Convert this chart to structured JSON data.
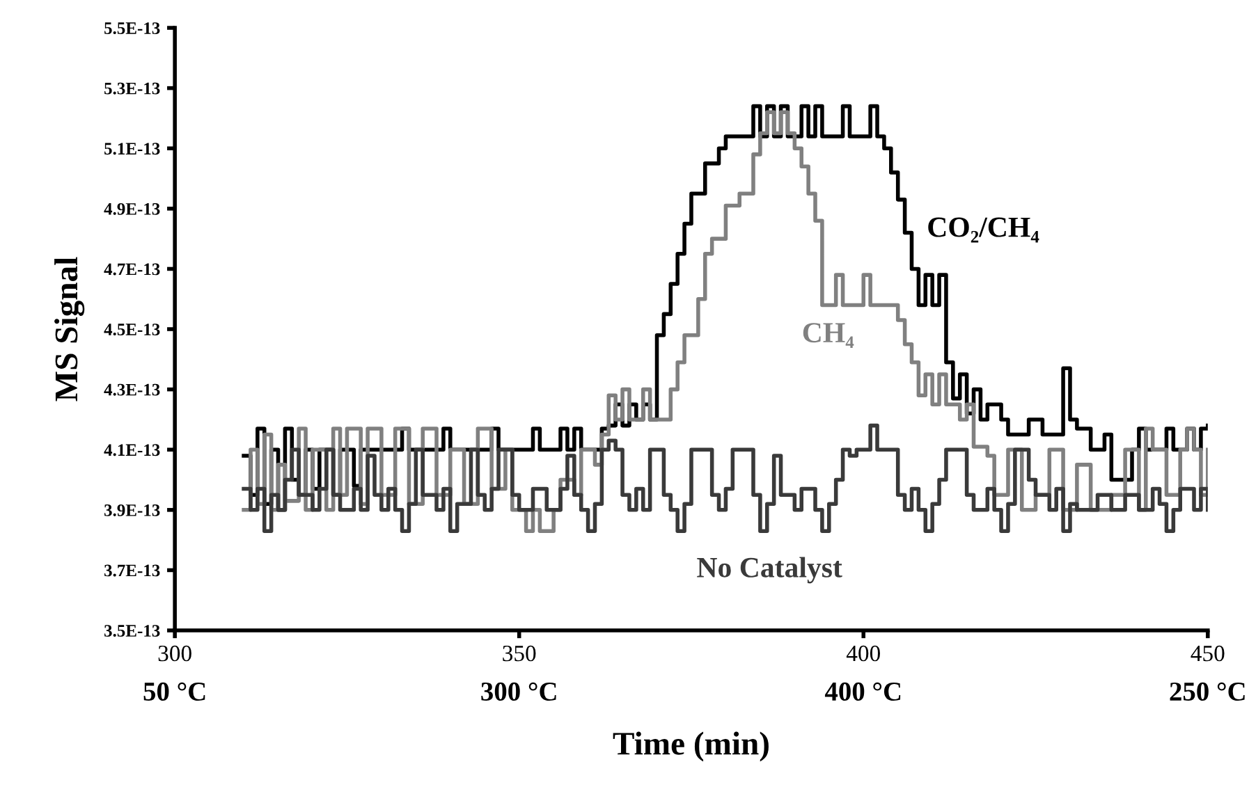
{
  "chart_data": {
    "type": "step",
    "xlabel": "Time (min)",
    "ylabel": "MS Signal",
    "xlim": [
      300,
      450
    ],
    "xticks": [
      300,
      350,
      400,
      450
    ],
    "annotations": [
      "50 °C",
      "300 °C",
      "400 °C",
      "250 °C"
    ],
    "ylim": [
      3.5e-13,
      5.5e-13
    ],
    "yticks": [
      {
        "value": 3.5e-13,
        "label": "3.5E-13"
      },
      {
        "value": 3.7e-13,
        "label": "3.7E-13"
      },
      {
        "value": 3.9e-13,
        "label": "3.9E-13"
      },
      {
        "value": 4.1e-13,
        "label": "4.1E-13"
      },
      {
        "value": 4.3e-13,
        "label": "4.3E-13"
      },
      {
        "value": 4.5e-13,
        "label": "4.5E-13"
      },
      {
        "value": 4.7e-13,
        "label": "4.7E-13"
      },
      {
        "value": 4.9e-13,
        "label": "4.9E-13"
      },
      {
        "value": 5.1e-13,
        "label": "5.1E-13"
      },
      {
        "value": 5.3e-13,
        "label": "5.3E-13"
      },
      {
        "value": 5.5e-13,
        "label": "5.5E-13"
      }
    ],
    "grid": false,
    "legend": false,
    "marker": "none",
    "line_style": "solid",
    "series": [
      {
        "name": "CO₂/CH₄",
        "color": "#000000",
        "x": [
          310,
          311,
          312,
          313,
          314,
          315,
          316,
          317,
          318,
          319,
          320,
          321,
          323,
          324,
          326,
          327,
          333,
          334,
          339,
          340,
          346,
          347,
          352,
          353,
          356,
          357,
          358,
          359,
          362,
          363,
          364,
          365,
          366,
          367,
          368,
          369,
          370,
          371,
          372,
          373,
          374,
          375,
          377,
          379,
          380,
          384,
          385,
          386,
          387,
          388,
          389,
          391,
          392,
          393,
          394,
          397,
          398,
          401,
          402,
          403,
          404,
          405,
          406,
          407,
          408,
          409,
          410,
          411,
          412,
          413,
          414,
          415,
          416,
          417,
          418,
          420,
          421,
          424,
          426,
          428,
          429,
          430,
          431,
          433,
          435,
          436,
          439,
          440,
          441,
          444,
          445,
          447,
          448,
          449,
          450
        ],
        "values": [
          4.08e-13,
          3.95e-13,
          4.17e-13,
          3.92e-13,
          4.1e-13,
          3.9e-13,
          4.17e-13,
          4e-13,
          3.95e-13,
          4.1e-13,
          3.97e-13,
          4.1e-13,
          3.95e-13,
          4.1e-13,
          3.98e-13,
          4.1e-13,
          4.17e-13,
          4.1e-13,
          4.17e-13,
          4.1e-13,
          4.17e-13,
          4.1e-13,
          4.17e-13,
          4.1e-13,
          4.17e-13,
          4.1e-13,
          4.17e-13,
          4.1e-13,
          4.17e-13,
          4.18e-13,
          4.25e-13,
          4.18e-13,
          4.25e-13,
          4.2e-13,
          4.25e-13,
          4.2e-13,
          4.48e-13,
          4.55e-13,
          4.65e-13,
          4.75e-13,
          4.85e-13,
          4.95e-13,
          5.05e-13,
          5.1e-13,
          5.14e-13,
          5.24e-13,
          5.14e-13,
          5.24e-13,
          5.14e-13,
          5.24e-13,
          5.14e-13,
          5.24e-13,
          5.14e-13,
          5.24e-13,
          5.14e-13,
          5.24e-13,
          5.14e-13,
          5.24e-13,
          5.14e-13,
          5.1e-13,
          5.02e-13,
          4.93e-13,
          4.82e-13,
          4.7e-13,
          4.58e-13,
          4.68e-13,
          4.58e-13,
          4.68e-13,
          4.39e-13,
          4.27e-13,
          4.35e-13,
          4.22e-13,
          4.3e-13,
          4.2e-13,
          4.25e-13,
          4.2e-13,
          4.15e-13,
          4.2e-13,
          4.15e-13,
          4.15e-13,
          4.37e-13,
          4.2e-13,
          4.17e-13,
          4.1e-13,
          4.15e-13,
          4e-13,
          4.1e-13,
          4.17e-13,
          4.1e-13,
          4.17e-13,
          4.1e-13,
          4.17e-13,
          4.1e-13,
          4.17e-13,
          4.18e-13
        ]
      },
      {
        "name": "CH₄",
        "color": "#808080",
        "x": [
          310,
          311,
          312,
          313,
          314,
          315,
          316,
          318,
          319,
          320,
          322,
          323,
          324,
          325,
          327,
          328,
          330,
          332,
          334,
          336,
          338,
          340,
          342,
          344,
          346,
          348,
          349,
          351,
          352,
          353,
          355,
          356,
          358,
          359,
          361,
          362,
          363,
          364,
          365,
          366,
          368,
          369,
          371,
          372,
          373,
          374,
          376,
          377,
          378,
          380,
          382,
          384,
          385,
          386,
          387,
          388,
          389,
          390,
          391,
          392,
          393,
          394,
          396,
          397,
          400,
          401,
          404,
          405,
          406,
          407,
          408,
          409,
          410,
          411,
          412,
          414,
          415,
          416,
          418,
          419,
          421,
          423,
          425,
          427,
          429,
          431,
          433,
          436,
          438,
          440,
          441,
          442,
          444,
          446,
          447,
          448,
          449,
          450
        ],
        "values": [
          3.9e-13,
          4.1e-13,
          3.92e-13,
          4.15e-13,
          3.9e-13,
          4.05e-13,
          3.93e-13,
          4.17e-13,
          3.9e-13,
          4.1e-13,
          3.9e-13,
          4.17e-13,
          3.95e-13,
          4.17e-13,
          3.92e-13,
          4.17e-13,
          3.95e-13,
          4.17e-13,
          3.92e-13,
          4.17e-13,
          3.95e-13,
          4.1e-13,
          3.92e-13,
          4.17e-13,
          3.97e-13,
          4.1e-13,
          3.9e-13,
          3.83e-13,
          3.9e-13,
          3.83e-13,
          3.9e-13,
          4e-13,
          3.95e-13,
          4.1e-13,
          4.05e-13,
          4.15e-13,
          4.28e-13,
          4.2e-13,
          4.3e-13,
          4.2e-13,
          4.3e-13,
          4.2e-13,
          4.2e-13,
          4.3e-13,
          4.39e-13,
          4.48e-13,
          4.6e-13,
          4.75e-13,
          4.8e-13,
          4.91e-13,
          4.95e-13,
          5.08e-13,
          5.15e-13,
          5.22e-13,
          5.15e-13,
          5.22e-13,
          5.15e-13,
          5.1e-13,
          5.04e-13,
          4.95e-13,
          4.86e-13,
          4.58e-13,
          4.68e-13,
          4.58e-13,
          4.68e-13,
          4.58e-13,
          4.58e-13,
          4.53e-13,
          4.45e-13,
          4.39e-13,
          4.28e-13,
          4.35e-13,
          4.25e-13,
          4.35e-13,
          4.25e-13,
          4.2e-13,
          4.25e-13,
          4.11e-13,
          4.08e-13,
          3.95e-13,
          4.1e-13,
          3.9e-13,
          3.95e-13,
          4.1e-13,
          3.9e-13,
          4.05e-13,
          3.9e-13,
          3.95e-13,
          4.1e-13,
          3.9e-13,
          4.17e-13,
          4.1e-13,
          3.95e-13,
          4.1e-13,
          4.17e-13,
          4.1e-13,
          3.95e-13,
          4.1e-13
        ]
      },
      {
        "name": "No Catalyst",
        "color": "#3a3a3a",
        "x": [
          310,
          311,
          312,
          313,
          314,
          315,
          316,
          317,
          318,
          320,
          321,
          322,
          323,
          324,
          326,
          327,
          328,
          329,
          330,
          331,
          332,
          333,
          334,
          335,
          336,
          338,
          339,
          340,
          341,
          343,
          344,
          345,
          346,
          347,
          349,
          350,
          352,
          354,
          356,
          357,
          358,
          359,
          360,
          361,
          362,
          363,
          364,
          365,
          366,
          367,
          368,
          369,
          371,
          372,
          373,
          374,
          375,
          378,
          379,
          380,
          381,
          384,
          385,
          386,
          387,
          388,
          390,
          391,
          393,
          394,
          395,
          396,
          397,
          398,
          399,
          401,
          402,
          404,
          405,
          406,
          407,
          408,
          409,
          410,
          411,
          412,
          414,
          415,
          416,
          418,
          419,
          420,
          421,
          422,
          424,
          425,
          427,
          428,
          429,
          430,
          431,
          433,
          434,
          436,
          438,
          440,
          442,
          443,
          444,
          445,
          446,
          448,
          449,
          450
        ],
        "values": [
          3.97e-13,
          3.9e-13,
          3.97e-13,
          3.83e-13,
          3.95e-13,
          3.9e-13,
          4e-13,
          4.1e-13,
          3.95e-13,
          3.9e-13,
          3.97e-13,
          4.1e-13,
          3.95e-13,
          3.9e-13,
          3.97e-13,
          3.9e-13,
          4.08e-13,
          3.95e-13,
          3.9e-13,
          3.97e-13,
          3.9e-13,
          3.83e-13,
          3.92e-13,
          4.1e-13,
          3.95e-13,
          3.9e-13,
          3.97e-13,
          3.83e-13,
          3.92e-13,
          4.1e-13,
          3.95e-13,
          3.9e-13,
          3.97e-13,
          4.1e-13,
          3.95e-13,
          3.9e-13,
          3.97e-13,
          3.9e-13,
          3.97e-13,
          4.08e-13,
          3.95e-13,
          3.9e-13,
          3.83e-13,
          3.92e-13,
          4.1e-13,
          4.13e-13,
          4.1e-13,
          3.95e-13,
          3.9e-13,
          3.97e-13,
          3.9e-13,
          4.1e-13,
          3.95e-13,
          3.9e-13,
          3.83e-13,
          3.92e-13,
          4.1e-13,
          3.95e-13,
          3.9e-13,
          3.97e-13,
          4.1e-13,
          3.95e-13,
          3.83e-13,
          3.92e-13,
          4.08e-13,
          3.95e-13,
          3.9e-13,
          3.97e-13,
          3.9e-13,
          3.83e-13,
          3.92e-13,
          4e-13,
          4.1e-13,
          4.08e-13,
          4.1e-13,
          4.18e-13,
          4.1e-13,
          4.1e-13,
          3.95e-13,
          3.9e-13,
          3.97e-13,
          3.9e-13,
          3.83e-13,
          3.92e-13,
          4e-13,
          4.1e-13,
          4.1e-13,
          3.95e-13,
          3.9e-13,
          3.97e-13,
          3.9e-13,
          3.83e-13,
          3.92e-13,
          4.1e-13,
          4e-13,
          3.95e-13,
          3.9e-13,
          3.97e-13,
          3.83e-13,
          3.92e-13,
          3.9e-13,
          3.9e-13,
          3.95e-13,
          3.9e-13,
          3.95e-13,
          3.9e-13,
          3.97e-13,
          3.92e-13,
          3.83e-13,
          3.9e-13,
          3.97e-13,
          3.9e-13,
          3.97e-13,
          3.9e-13
        ]
      }
    ]
  }
}
